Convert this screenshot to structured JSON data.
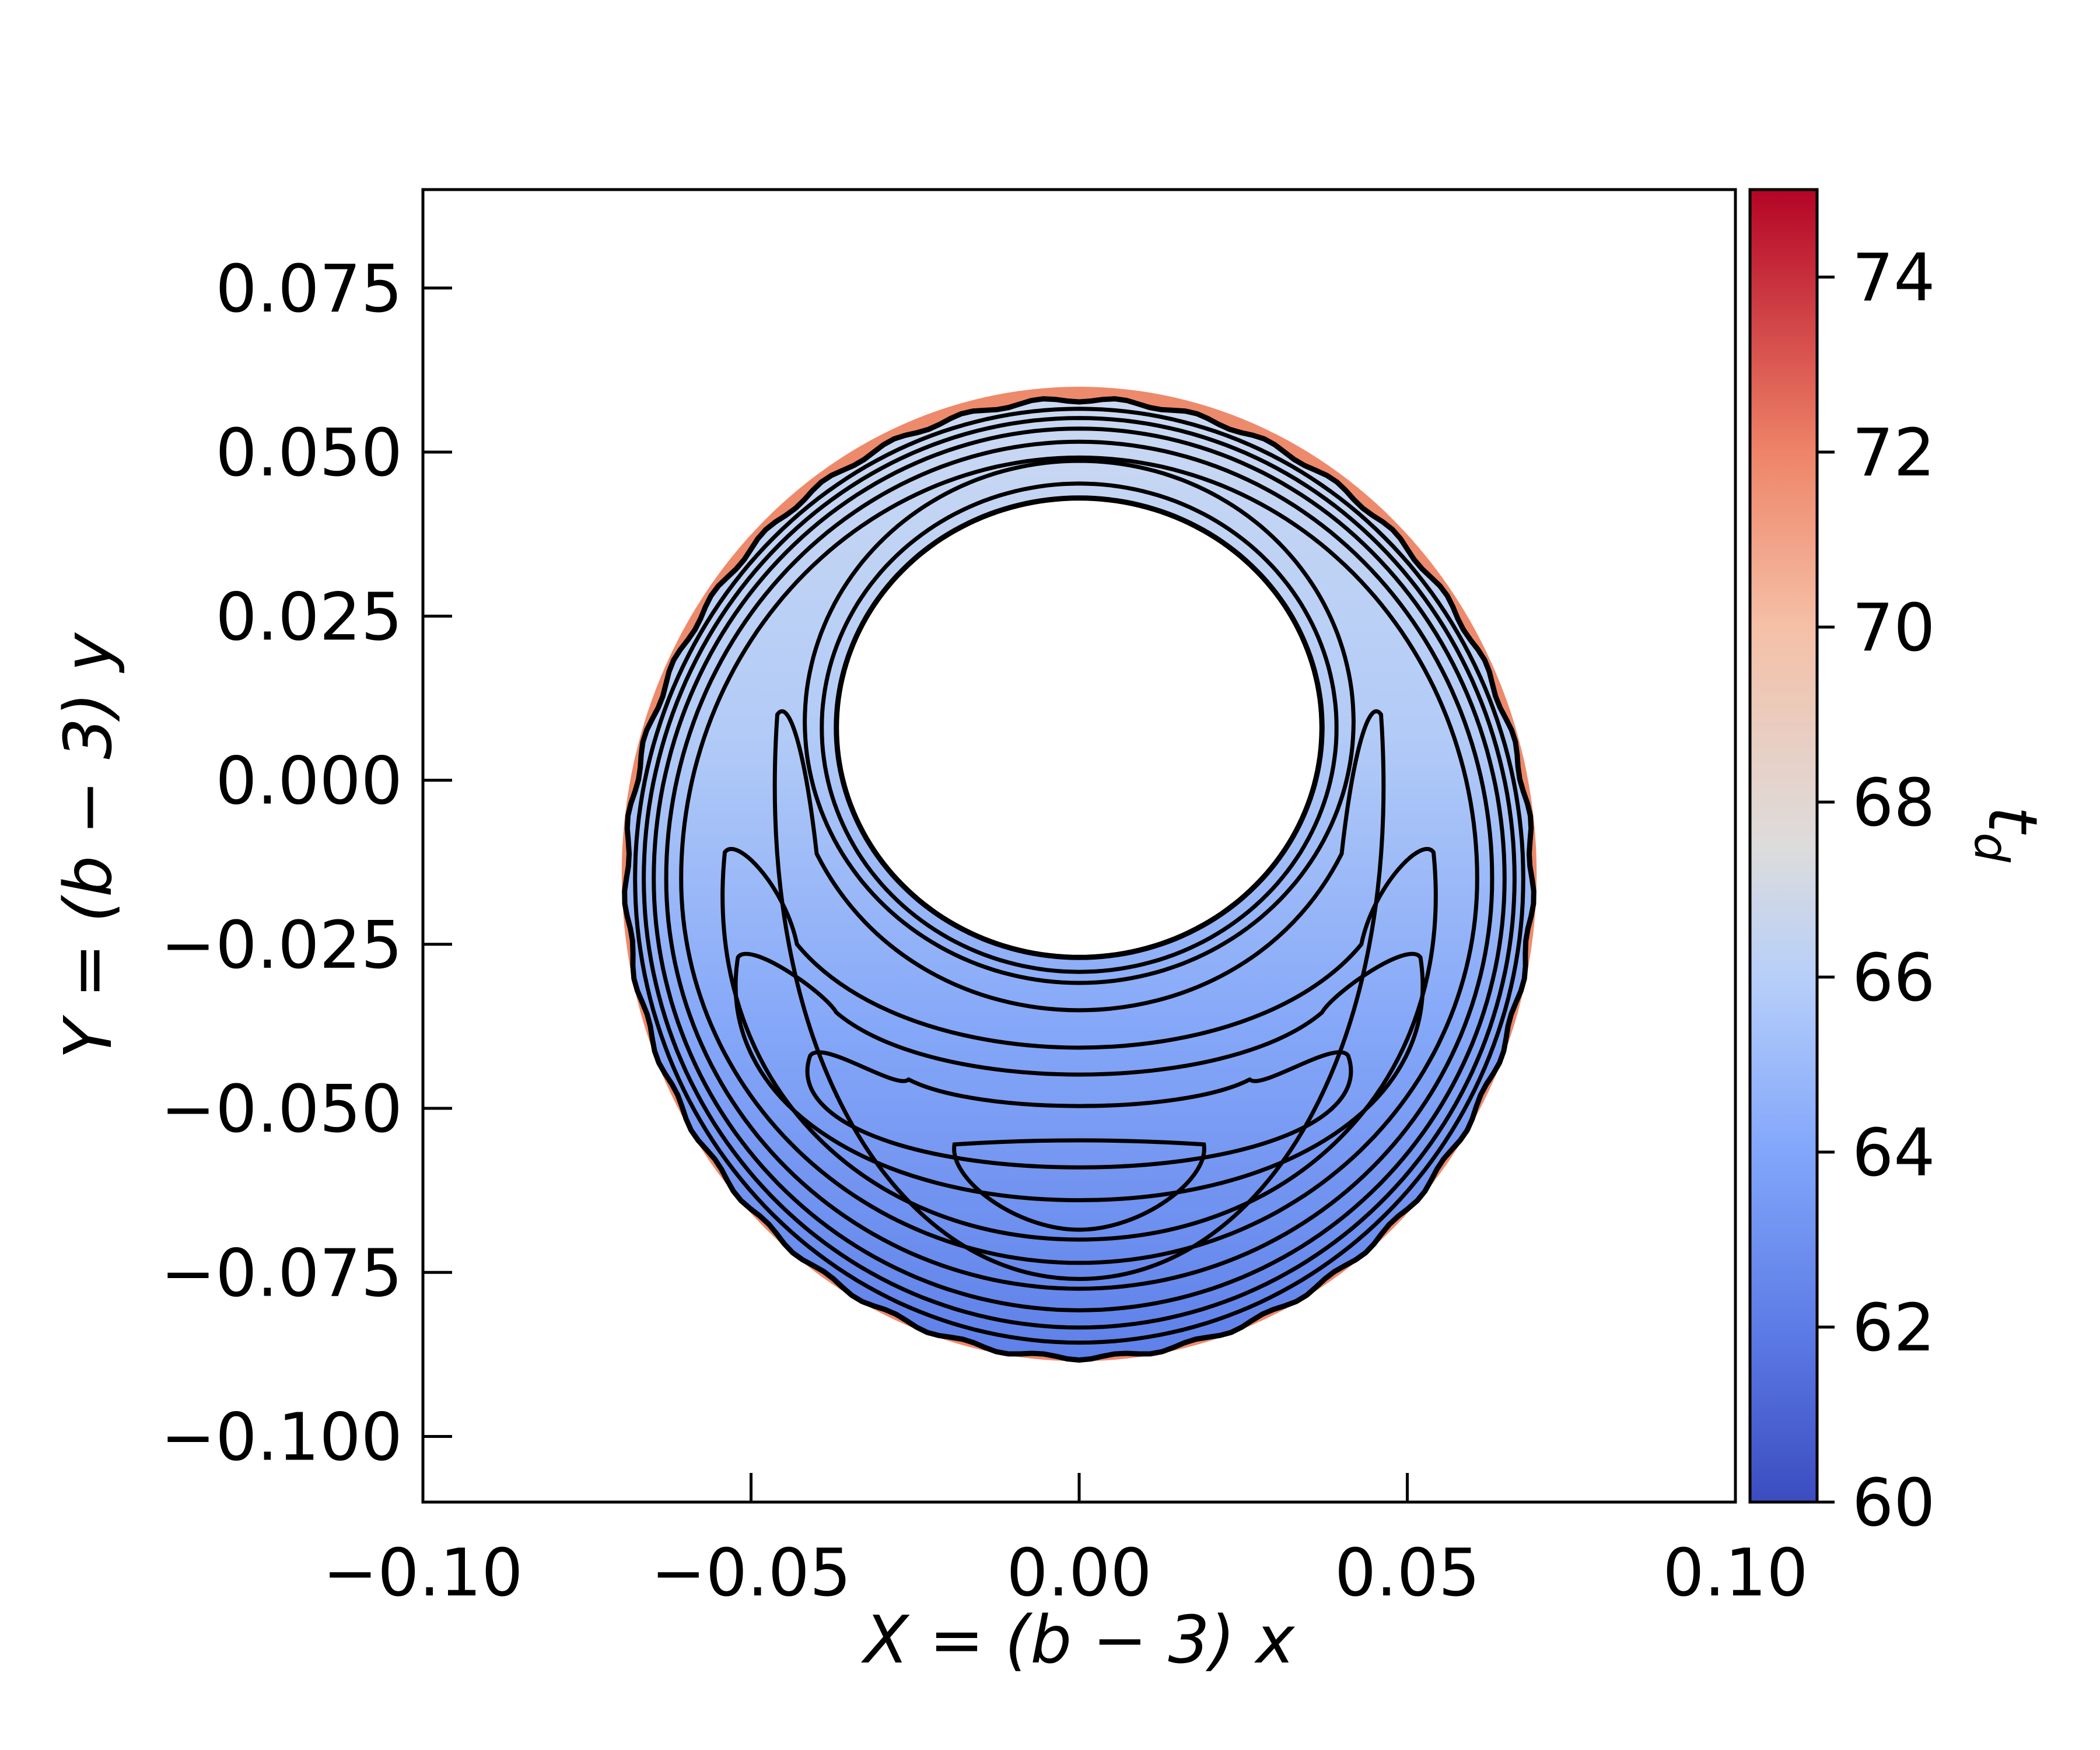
{
  "chart_data": {
    "type": "heatmap",
    "title": "",
    "xlabel": "X = (b − 3) x",
    "ylabel": "Y = (b − 3) y",
    "xlim": [
      -0.1,
      0.1
    ],
    "ylim": [
      -0.11,
      0.09
    ],
    "x_ticks": [
      -0.1,
      -0.05,
      0.0,
      0.05,
      0.1
    ],
    "x_tick_labels": [
      "−0.10",
      "−0.05",
      "0.00",
      "0.05",
      "0.10"
    ],
    "y_ticks": [
      0.075,
      0.05,
      0.025,
      0.0,
      -0.025,
      -0.05,
      -0.075,
      -0.1
    ],
    "y_tick_labels": [
      "0.075",
      "0.050",
      "0.025",
      "0.000",
      "−0.025",
      "−0.050",
      "−0.075",
      "−0.100"
    ],
    "grid": false,
    "colorbar": {
      "label": "t_d",
      "label_main": "t",
      "label_sub": "d",
      "colormap": "coolwarm",
      "range": [
        60,
        75
      ],
      "ticks": [
        60,
        62,
        64,
        66,
        68,
        70,
        72,
        74
      ],
      "tick_labels": [
        "60",
        "62",
        "64",
        "66",
        "68",
        "70",
        "72",
        "74"
      ],
      "colors": {
        "c60": "#3b4cc0",
        "c62": "#5d7ce6",
        "c64": "#82a6fb",
        "c66": "#b7cff9",
        "c67_5": "#dddcdc",
        "c70": "#f5c0a7",
        "c72": "#ee8468",
        "c75": "#b40426"
      }
    },
    "region": {
      "shape": "annulus",
      "outer_center": [
        0.0,
        -0.015
      ],
      "outer_radius_x": 0.069,
      "outer_radius_top": 0.073,
      "outer_radius_bottom": 0.073,
      "inner_center": [
        0.0,
        0.008
      ],
      "inner_radius_x": 0.037,
      "inner_radius_y": 0.035
    },
    "contour_levels": [
      63,
      64,
      65,
      66,
      67,
      68,
      69,
      70,
      71,
      72,
      73
    ],
    "contour_color": "#000000"
  }
}
